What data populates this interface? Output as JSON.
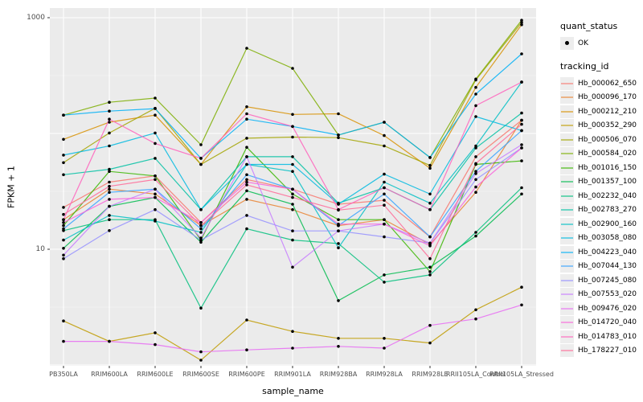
{
  "y_axis": {
    "label": "FPKM + 1",
    "scale": "log10",
    "ticks": [
      {
        "label": "1000",
        "value": 1000
      },
      {
        "label": "10",
        "value": 10
      }
    ]
  },
  "x_axis": {
    "label": "sample_name",
    "categories": [
      "PB350LA",
      "RRIM600LA",
      "RRIM600LE",
      "RRIM600SE",
      "RRIM600PE",
      "RRIM901LA",
      "RRIM928BA",
      "RRIM928LA",
      "RRIM928LE",
      "RRII105LA_Control",
      "RRII105LA_Stressed"
    ]
  },
  "legend": {
    "quant_status_title": "quant_status",
    "quant_status_ok_label": "OK",
    "tracking_id_title": "tracking_id"
  },
  "style": {
    "panel_bg": "#ebebeb",
    "grid_color": "#ffffff",
    "point_color": "#000000",
    "tick_text_color": "#4d4d4d"
  },
  "chart_data": {
    "type": "line",
    "title": "",
    "xlabel": "sample_name",
    "ylabel": "FPKM + 1",
    "y_scale": "log10",
    "ylim": [
      1,
      1200
    ],
    "grid": true,
    "legend_position": "right",
    "y_major_gridlines": [
      1,
      10,
      100,
      1000
    ],
    "y_minor_gridlines": [
      3.162,
      31.62,
      316.2
    ],
    "categories": [
      "PB350LA",
      "RRIM600LA",
      "RRIM600LE",
      "RRIM600SE",
      "RRIM600PE",
      "RRIM901LA",
      "RRIM928BA",
      "RRIM928LA",
      "RRIM928LE",
      "RRII105LA_Control",
      "RRII105LA_Stressed"
    ],
    "quant_status": "OK",
    "series": [
      {
        "name": "Hb_000062_650",
        "color": "#F8766D",
        "values": [
          23,
          38,
          43,
          17,
          40,
          33,
          24.5,
          26.5,
          12.8,
          63,
          130
        ]
      },
      {
        "name": "Hb_000096_170",
        "color": "#EA8331",
        "values": [
          18,
          33,
          30,
          16,
          27,
          22,
          16,
          18,
          11,
          31,
          130
        ]
      },
      {
        "name": "Hb_000212_210",
        "color": "#D89000",
        "values": [
          89,
          125,
          144,
          54,
          170,
          146,
          148,
          96,
          50,
          250,
          870
        ]
      },
      {
        "name": "Hb_000352_290",
        "color": "#C09B00",
        "values": [
          2.4,
          1.6,
          1.9,
          1.1,
          2.45,
          1.95,
          1.7,
          1.7,
          1.55,
          3.0,
          4.7
        ]
      },
      {
        "name": "Hb_000506_070",
        "color": "#A3A500",
        "values": [
          56,
          101,
          165,
          54,
          91,
          93,
          92,
          78,
          53,
          290,
          910
        ]
      },
      {
        "name": "Hb_000584_020",
        "color": "#7CAE00",
        "values": [
          144,
          186,
          202,
          80,
          545,
          365,
          97,
          125,
          62,
          295,
          950
        ]
      },
      {
        "name": "Hb_001016_150",
        "color": "#39B600",
        "values": [
          16,
          47,
          43,
          12,
          76,
          30,
          18,
          18,
          6.4,
          54,
          58
        ]
      },
      {
        "name": "Hb_001357_100",
        "color": "#00BB4E",
        "values": [
          10.2,
          23.5,
          28,
          11.5,
          32,
          24.5,
          3.6,
          6.0,
          7.0,
          13,
          30
        ]
      },
      {
        "name": "Hb_002232_040",
        "color": "#00BF7D",
        "values": [
          14.5,
          18,
          18,
          3.1,
          15,
          12,
          11.2,
          5.2,
          6.0,
          14,
          34
        ]
      },
      {
        "name": "Hb_002783_270",
        "color": "#00C1A3",
        "values": [
          44,
          49,
          61,
          22,
          63,
          63,
          25,
          34,
          22,
          75,
          150
        ]
      },
      {
        "name": "Hb_002900_160",
        "color": "#00BFC4",
        "values": [
          12,
          19.6,
          17.5,
          14,
          54,
          47,
          10.3,
          38,
          25,
          78,
          278
        ]
      },
      {
        "name": "Hb_003058_080",
        "color": "#00BAE0",
        "values": [
          65,
          78,
          101,
          22,
          54,
          54,
          24.5,
          44.5,
          30,
          140,
          106
        ]
      },
      {
        "name": "Hb_004223_040",
        "color": "#00B0F6",
        "values": [
          144,
          156,
          164,
          61,
          133,
          115,
          97,
          125,
          62,
          219,
          487
        ]
      },
      {
        "name": "Hb_007044_130",
        "color": "#35A2FF",
        "values": [
          15,
          31,
          33,
          15,
          44,
          33,
          16,
          30,
          12.8,
          47,
          106
        ]
      },
      {
        "name": "Hb_007245_080",
        "color": "#9590FF",
        "values": [
          8.3,
          14.5,
          22,
          12,
          19.6,
          14.4,
          14.4,
          12.8,
          11.3,
          40,
          75
        ]
      },
      {
        "name": "Hb_007553_020",
        "color": "#C77CFF",
        "values": [
          8.9,
          23.5,
          33,
          12.5,
          63,
          7.0,
          14.4,
          16.5,
          11.3,
          45,
          80
        ]
      },
      {
        "name": "Hb_009476_020",
        "color": "#E76BF3",
        "values": [
          1.6,
          1.6,
          1.5,
          1.3,
          1.35,
          1.4,
          1.45,
          1.4,
          2.2,
          2.5,
          3.3
        ]
      },
      {
        "name": "Hb_014720_040",
        "color": "#FA62DB",
        "values": [
          17,
          27,
          28,
          17,
          38,
          33,
          16.5,
          16.5,
          10.7,
          34.5,
          75
        ]
      },
      {
        "name": "Hb_014783_010",
        "color": "#FF62BC",
        "values": [
          18,
          133,
          82,
          61,
          148,
          115,
          22,
          34,
          22,
          174,
          278
        ]
      },
      {
        "name": "Hb_178227_010",
        "color": "#FF6A98",
        "values": [
          20,
          35,
          40,
          16,
          36,
          28,
          21.8,
          24,
          8.3,
          55,
          120
        ]
      }
    ]
  }
}
